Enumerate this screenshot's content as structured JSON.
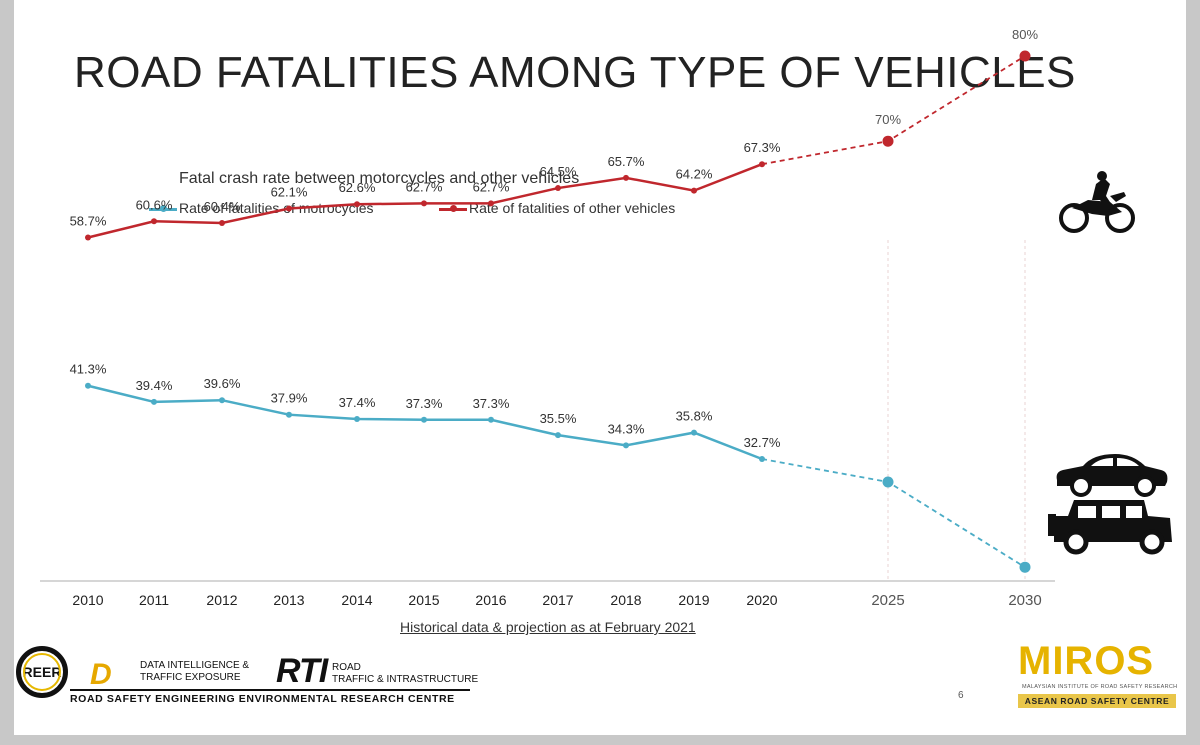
{
  "slide": {
    "title": "ROAD FATALITIES AMONG TYPE OF VEHICLES",
    "page_number": "6",
    "footnote": "Historical data & projection as at February 2021"
  },
  "logos": {
    "reer": "REER",
    "dite_line1": "DATA INTELLIGENCE &",
    "dite_line2": "TRAFFIC EXPOSURE",
    "rti_mark": "RTI",
    "rti_line1": "ROAD",
    "rti_line2": "TRAFFIC & INTRASTRUCTURE",
    "centre_name": "ROAD SAFETY ENGINEERING ENVIRONMENTAL RESEARCH CENTRE",
    "miros": "MIROS",
    "miros_sub": "MALAYSIAN INSTITUTE OF ROAD SAFETY RESEARCH",
    "asean": "ASEAN ROAD SAFETY CENTRE"
  },
  "icons": [
    "motorcycle-icon",
    "car-icon",
    "jeep-icon"
  ],
  "colors": {
    "motorcycles": "#4bacc6",
    "other_vehicles": "#c0272d"
  },
  "chart_data": {
    "type": "line",
    "title": "Fatal crash rate between motorcycles and other vehicles",
    "xlabel": "",
    "ylabel": "",
    "x": [
      "2010",
      "2011",
      "2012",
      "2013",
      "2014",
      "2015",
      "2016",
      "2017",
      "2018",
      "2019",
      "2020",
      "2025",
      "2030"
    ],
    "legend_position": "top-left",
    "grid": false,
    "series": [
      {
        "name": "Rate of fatalities of motrocycles",
        "values": [
          41.3,
          39.4,
          39.6,
          37.9,
          37.4,
          37.3,
          37.3,
          35.5,
          34.3,
          35.8,
          32.7,
          30,
          20
        ],
        "labels": [
          "41.3%",
          "39.4%",
          "39.6%",
          "37.9%",
          "37.4%",
          "37.3%",
          "37.3%",
          "35.5%",
          "34.3%",
          "35.8%",
          "32.7%",
          "",
          ""
        ],
        "projected_from": "2020"
      },
      {
        "name": "Rate of fatalities of other vehicles",
        "values": [
          58.7,
          60.6,
          60.4,
          62.1,
          62.6,
          62.7,
          62.7,
          64.5,
          65.7,
          64.2,
          67.3,
          70,
          80
        ],
        "labels": [
          "58.7%",
          "60.6%",
          "60.4%",
          "62.1%",
          "62.6%",
          "62.7%",
          "62.7%",
          "64.5%",
          "65.7%",
          "64.2%",
          "67.3%",
          "70%",
          "80%"
        ],
        "projected_from": "2020"
      }
    ]
  }
}
